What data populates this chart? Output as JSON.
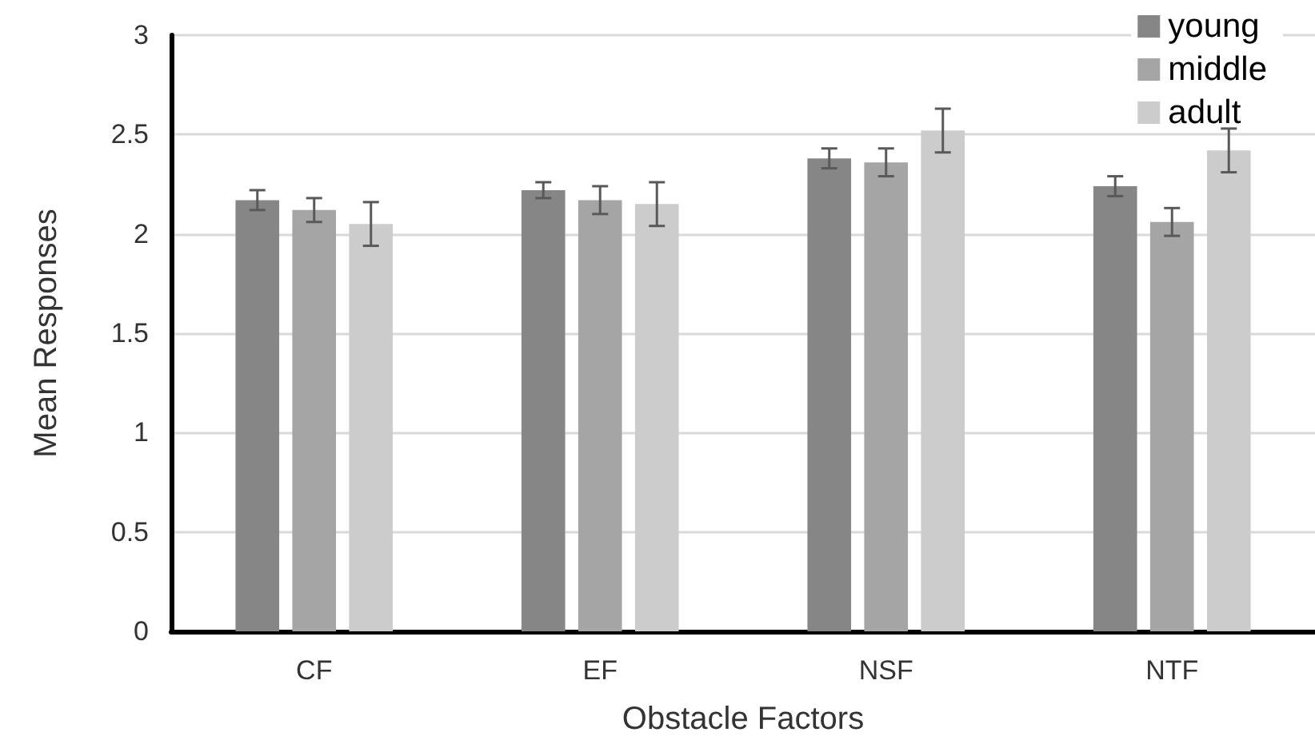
{
  "chart_data": {
    "type": "bar",
    "xlabel": "Obstacle Factors",
    "ylabel": "Mean Responses",
    "categories": [
      "CF",
      "EF",
      "NSF",
      "NTF"
    ],
    "series": [
      {
        "name": "young",
        "color": "#868686",
        "values": [
          2.17,
          2.22,
          2.38,
          2.24
        ],
        "errors": [
          0.05,
          0.04,
          0.05,
          0.05
        ]
      },
      {
        "name": "middle",
        "color": "#a5a5a5",
        "values": [
          2.12,
          2.17,
          2.36,
          2.06
        ],
        "errors": [
          0.06,
          0.07,
          0.07,
          0.07
        ]
      },
      {
        "name": "adult",
        "color": "#cccccc",
        "values": [
          2.05,
          2.15,
          2.52,
          2.42
        ],
        "errors": [
          0.11,
          0.11,
          0.11,
          0.11
        ]
      }
    ],
    "ylim": [
      0,
      3
    ],
    "yticks": [
      0,
      0.5,
      1,
      1.5,
      2,
      2.5,
      3
    ],
    "grid": "y",
    "legend": "top right"
  }
}
